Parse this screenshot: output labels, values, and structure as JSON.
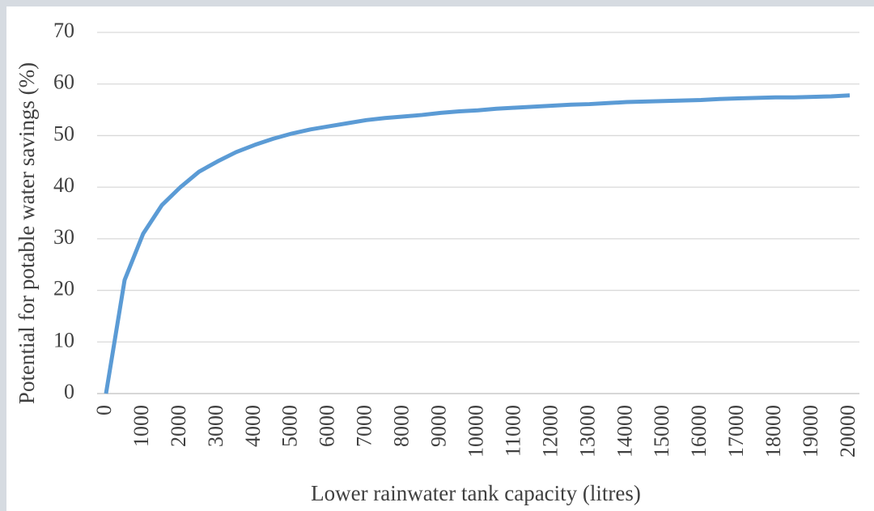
{
  "chart_data": {
    "type": "line",
    "x_label": "Lower rainwater tank capacity (litres)",
    "y_label": "Potential for potable water savings (%)",
    "x": [
      0,
      500,
      1000,
      1500,
      2000,
      2500,
      3000,
      3500,
      4000,
      4500,
      5000,
      5500,
      6000,
      6500,
      7000,
      7500,
      8000,
      8500,
      9000,
      9500,
      10000,
      10500,
      11000,
      11500,
      12000,
      12500,
      13000,
      13500,
      14000,
      14500,
      15000,
      15500,
      16000,
      16500,
      17000,
      17500,
      18000,
      18500,
      19000,
      19500,
      20000
    ],
    "values": [
      0,
      22,
      31,
      36.5,
      40,
      43,
      45,
      46.8,
      48.2,
      49.4,
      50.4,
      51.2,
      51.8,
      52.4,
      53,
      53.4,
      53.7,
      54,
      54.4,
      54.7,
      54.9,
      55.2,
      55.4,
      55.6,
      55.8,
      56,
      56.1,
      56.3,
      56.5,
      56.6,
      56.7,
      56.8,
      56.9,
      57.1,
      57.2,
      57.3,
      57.4,
      57.4,
      57.5,
      57.6,
      57.8
    ],
    "color": "#5b9bd5",
    "xlim": [
      0,
      20000
    ],
    "xticks": [
      0,
      1000,
      2000,
      3000,
      4000,
      5000,
      6000,
      7000,
      8000,
      9000,
      10000,
      11000,
      12000,
      13000,
      14000,
      15000,
      16000,
      17000,
      18000,
      19000,
      20000
    ],
    "ylim": [
      0,
      70
    ],
    "yticks": [
      0,
      10,
      20,
      30,
      40,
      50,
      60,
      70
    ],
    "grid": true
  }
}
